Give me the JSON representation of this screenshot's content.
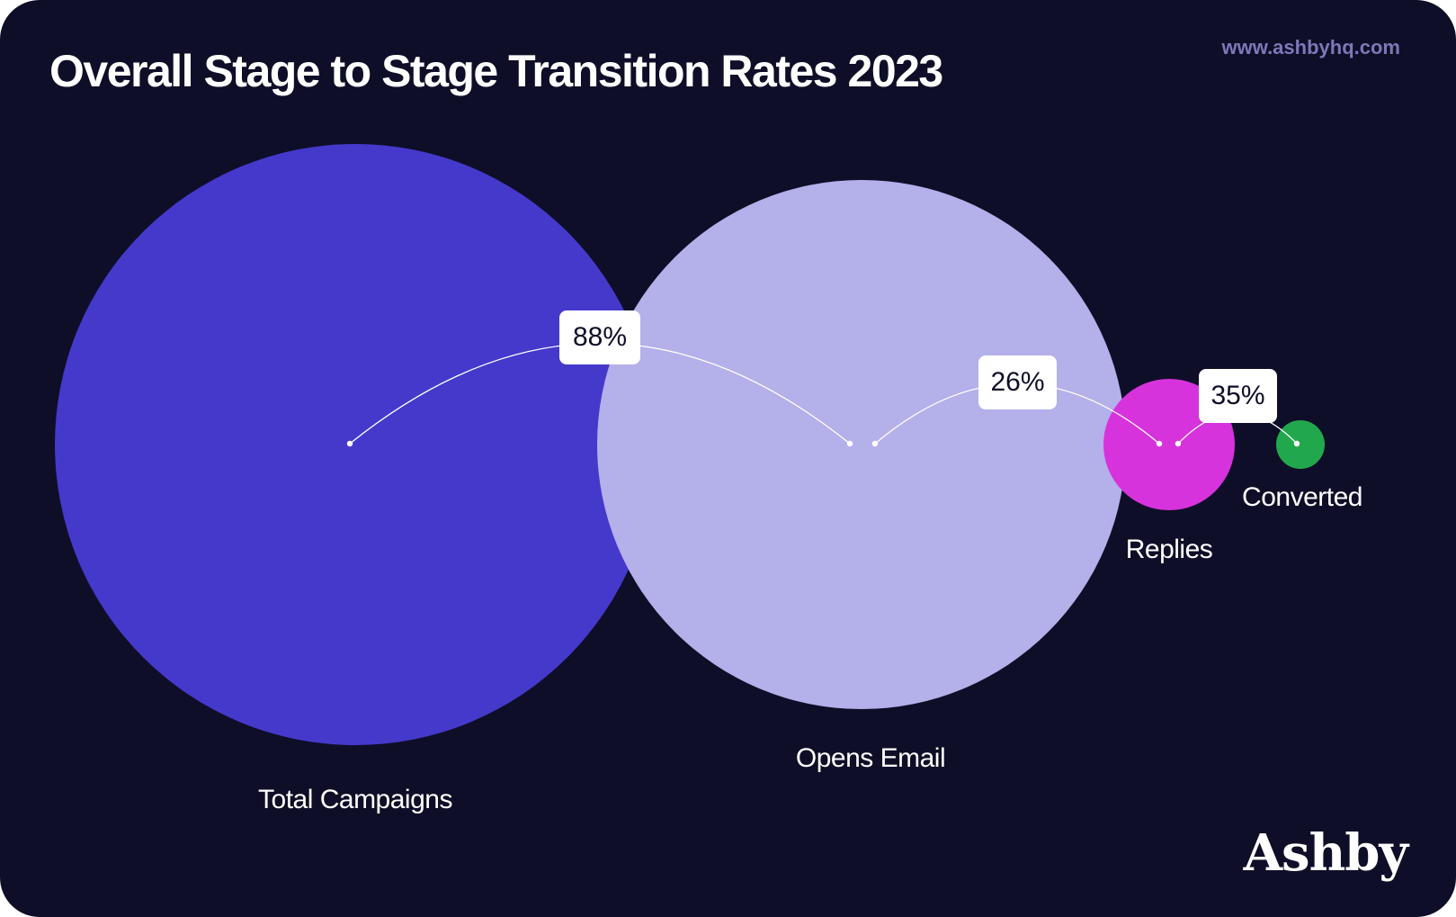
{
  "header": {
    "title": "Overall Stage to Stage Transition Rates 2023",
    "url": "www.ashbyhq.com"
  },
  "brand": {
    "logo_text": "Ashby"
  },
  "chart_data": {
    "type": "bubble-funnel",
    "title": "Overall Stage to Stage Transition Rates 2023",
    "stages": [
      {
        "label": "Total Campaigns",
        "color": "#4539cc"
      },
      {
        "label": "Opens Email",
        "color": "#b3b0ea"
      },
      {
        "label": "Replies",
        "color": "#d633dc"
      },
      {
        "label": "Converted",
        "color": "#22a84c"
      }
    ],
    "transitions": [
      {
        "from": "Total Campaigns",
        "to": "Opens Email",
        "value": 88,
        "label": "88%"
      },
      {
        "from": "Opens Email",
        "to": "Replies",
        "value": 26,
        "label": "26%"
      },
      {
        "from": "Replies",
        "to": "Converted",
        "value": 35,
        "label": "35%"
      }
    ]
  },
  "colors": {
    "background": "#0f0e28",
    "text": "#ffffff",
    "url": "#7d78b8",
    "badge_bg": "#ffffff",
    "badge_text": "#0f0e28"
  }
}
